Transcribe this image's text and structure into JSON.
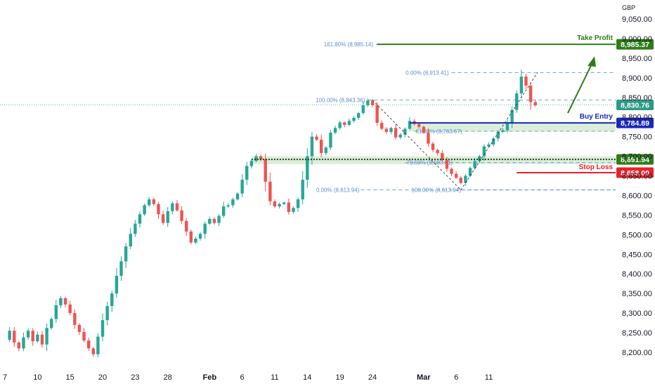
{
  "chart_data": {
    "type": "candlestick",
    "currency": "GBP",
    "y_ticks": [
      8200,
      8250,
      8300,
      8350,
      8400,
      8450,
      8500,
      8550,
      8600,
      8650,
      8700,
      8750,
      8800,
      8850,
      8900,
      8950,
      9000,
      9050
    ],
    "y_tick_labels": [
      "8,200.00",
      "8,250.00",
      "8,300.00",
      "8,350.00",
      "8,400.00",
      "8,450.00",
      "8,500.00",
      "8,550.00",
      "8,600.00",
      "8,650.00",
      "8,700.00",
      "8,750.00",
      "8,800.00",
      "8,850.00",
      "8,900.00",
      "8,950.00",
      "9,000.00",
      "9,050.00"
    ],
    "ylim": [
      8175,
      9080
    ],
    "x_ticks": [
      {
        "label": "7",
        "index": 0
      },
      {
        "label": "10",
        "index": 7
      },
      {
        "label": "15",
        "index": 14
      },
      {
        "label": "20",
        "index": 21
      },
      {
        "label": "23",
        "index": 28
      },
      {
        "label": "28",
        "index": 35
      },
      {
        "label": "Feb",
        "index": 44,
        "bold": true
      },
      {
        "label": "6",
        "index": 51
      },
      {
        "label": "11",
        "index": 58
      },
      {
        "label": "14",
        "index": 65
      },
      {
        "label": "19",
        "index": 72
      },
      {
        "label": "24",
        "index": 79
      },
      {
        "label": "Mar",
        "index": 90,
        "bold": true
      },
      {
        "label": "6",
        "index": 97
      },
      {
        "label": "11",
        "index": 104
      }
    ],
    "price_points": [
      8232,
      8255,
      8225,
      8210,
      8238,
      8255,
      8228,
      8245,
      8220,
      8262,
      8285,
      8320,
      8338,
      8322,
      8300,
      8270,
      8252,
      8230,
      8210,
      8195,
      8240,
      8282,
      8318,
      8350,
      8395,
      8432,
      8470,
      8502,
      8528,
      8552,
      8575,
      8590,
      8578,
      8552,
      8530,
      8560,
      8580,
      8562,
      8535,
      8508,
      8480,
      8490,
      8502,
      8528,
      8540,
      8530,
      8548,
      8572,
      8575,
      8590,
      8605,
      8640,
      8675,
      8688,
      8700,
      8692,
      8635,
      8585,
      8572,
      8578,
      8582,
      8558,
      8568,
      8590,
      8640,
      8700,
      8750,
      8742,
      8708,
      8722,
      8760,
      8772,
      8786,
      8780,
      8790,
      8798,
      8810,
      8830,
      8842,
      8830,
      8785,
      8770,
      8762,
      8772,
      8748,
      8755,
      8770,
      8790,
      8782,
      8775,
      8760,
      8732,
      8716,
      8708,
      8690,
      8668,
      8655,
      8645,
      8632,
      8650,
      8670,
      8688,
      8700,
      8725,
      8730,
      8745,
      8762,
      8766,
      8785,
      8818,
      8860,
      8903,
      8880,
      8838,
      8830
    ],
    "last_price": {
      "value": 8830.76,
      "label": "8,830.76"
    },
    "fibonacci": [
      {
        "label": "100.00% (8,843.36)",
        "value": 8843.36
      },
      {
        "label": "0.00% (8,613.94)",
        "value": 8613.94
      },
      {
        "label": "0.00% (8,913.41)",
        "value": 8913.41
      },
      {
        "label": "61.80% (8,763.67)",
        "value": 8763.67
      },
      {
        "label": "78.60% (8,683.61)",
        "value": 8683.61
      },
      {
        "label": "100.00% (8,613.94)",
        "value": 8613.94
      },
      {
        "label": "161.80% (8,985.14)",
        "value": 8985.14
      }
    ],
    "levels": [
      {
        "name": "Take Profit",
        "value": 8985.37,
        "label": "8,985.37",
        "color": "#2e7d18"
      },
      {
        "name": "Buy Entry",
        "value": 8784.89,
        "label": "8,784.89",
        "color": "#1a28b8"
      },
      {
        "name": "",
        "value": 8691.94,
        "label": "8,691.94",
        "color": "#2e7d18"
      },
      {
        "name": "Stop Loss",
        "value": 8658.0,
        "label": "8,658.00",
        "color": "#e8212b"
      }
    ],
    "colors": {
      "up": "#26a69a",
      "down": "#ef5350",
      "fib": "#5b8fd1",
      "axis_text": "#131722",
      "zone": "#cfe8cb",
      "last_line": "#2e9a86"
    }
  }
}
